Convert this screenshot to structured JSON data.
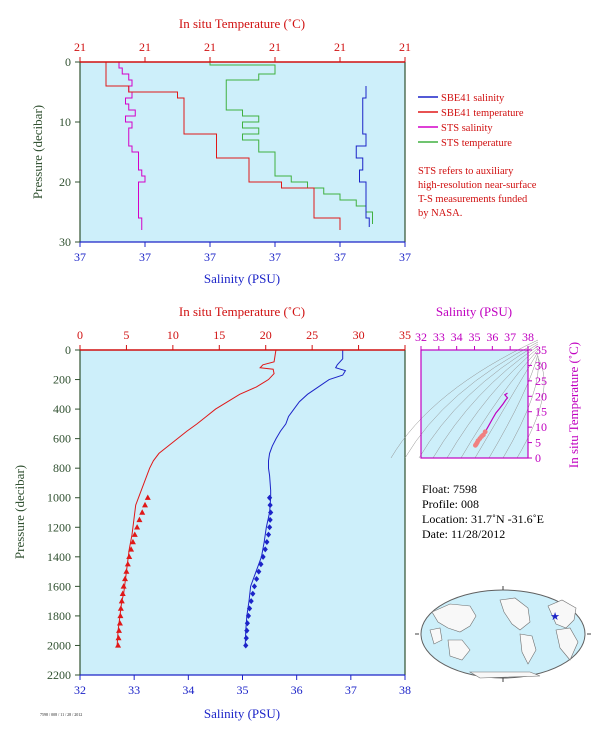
{
  "colors": {
    "plot_bg": "#cdeffa",
    "salinity": "#1c24c8",
    "temperature": "#e01818",
    "sts_salinity": "#d400c8",
    "sts_temperature": "#40b040",
    "axis_left": "#305030",
    "axis_blue": "#1c24c8",
    "axis_red": "#d01010",
    "axis_magenta": "#c000c0"
  },
  "chart_data": [
    {
      "id": "near_surface",
      "type": "line",
      "title": "In situ Temperature (˚C)",
      "top_axis_label": "In situ Temperature (˚C)",
      "top_ticks": [
        "21",
        "21",
        "21",
        "21",
        "21",
        "21"
      ],
      "bottom_axis_label": "Salinity (PSU)",
      "bottom_ticks": [
        "37",
        "37",
        "37",
        "37",
        "37",
        "37"
      ],
      "ylabel": "Pressure (decibar)",
      "yticks": [
        "0",
        "10",
        "20",
        "30"
      ],
      "ylim": [
        0,
        30
      ],
      "x_norm_range": [
        0,
        1
      ],
      "legend": {
        "placement": "right",
        "entries": [
          "SBE41 salinity",
          "SBE41 temperature",
          "STS salinity",
          "STS temperature"
        ]
      },
      "note": [
        "STS refers to auxiliary",
        "high-resolution near-surface",
        "T-S measurements funded",
        "by NASA."
      ],
      "series": [
        {
          "name": "STS salinity",
          "p": [
            0,
            1,
            2,
            3,
            4,
            5,
            6,
            7,
            8,
            9,
            10,
            11,
            12,
            13,
            14,
            15,
            16,
            17,
            18,
            19,
            20,
            21,
            22,
            23,
            24,
            25,
            26,
            27,
            28
          ],
          "x": [
            0.1,
            0.12,
            0.13,
            0.15,
            0.16,
            0.15,
            0.16,
            0.14,
            0.15,
            0.17,
            0.14,
            0.16,
            0.15,
            0.15,
            0.15,
            0.16,
            0.18,
            0.18,
            0.18,
            0.19,
            0.2,
            0.18,
            0.18,
            0.18,
            0.18,
            0.18,
            0.18,
            0.19,
            0.19
          ]
        },
        {
          "name": "STS temperature",
          "p": [
            0,
            0.5,
            1,
            2,
            3,
            3,
            4,
            5,
            6,
            7,
            8,
            9,
            10,
            11,
            12,
            13,
            14,
            15,
            16,
            17,
            18,
            19,
            20,
            21,
            22,
            23,
            24,
            25,
            26,
            27
          ],
          "x": [
            0.05,
            0.4,
            0.6,
            0.6,
            0.55,
            0.45,
            0.45,
            0.45,
            0.45,
            0.45,
            0.45,
            0.5,
            0.55,
            0.5,
            0.55,
            0.5,
            0.55,
            0.55,
            0.6,
            0.6,
            0.6,
            0.6,
            0.65,
            0.7,
            0.75,
            0.8,
            0.85,
            0.88,
            0.9,
            0.9
          ]
        },
        {
          "name": "SBE41 temperature",
          "p": [
            0,
            4,
            5,
            6,
            8,
            10,
            12,
            14,
            16,
            18,
            20,
            21,
            22,
            24,
            26,
            27,
            28
          ],
          "x": [
            0.08,
            0.08,
            0.15,
            0.3,
            0.32,
            0.32,
            0.32,
            0.42,
            0.42,
            0.52,
            0.52,
            0.62,
            0.72,
            0.72,
            0.72,
            0.8,
            0.8
          ]
        },
        {
          "name": "SBE41 salinity",
          "p": [
            4,
            6,
            8,
            10,
            12,
            14,
            16,
            18,
            20,
            22,
            24,
            26,
            27.5
          ],
          "x": [
            0.88,
            0.88,
            0.87,
            0.87,
            0.87,
            0.88,
            0.85,
            0.87,
            0.86,
            0.88,
            0.88,
            0.88,
            0.89
          ]
        }
      ]
    },
    {
      "id": "full_profile",
      "type": "line",
      "top_axis_label": "In situ Temperature (˚C)",
      "top_ticks": [
        0,
        5,
        10,
        15,
        20,
        25,
        30,
        35
      ],
      "xlim_temperature": [
        0,
        35
      ],
      "bottom_axis_label": "Salinity (PSU)",
      "bottom_ticks": [
        32,
        33,
        34,
        35,
        36,
        37,
        38
      ],
      "xlim_salinity": [
        32,
        38
      ],
      "ylabel": "Pressure (decibar)",
      "yticks": [
        0,
        200,
        400,
        600,
        800,
        1000,
        1200,
        1400,
        1600,
        1800,
        2000,
        2200
      ],
      "ylim": [
        0,
        2200
      ],
      "series": [
        {
          "name": "temperature",
          "x": [
            21.1,
            21.0,
            20.9,
            19.7,
            19.4,
            20.8,
            20.9,
            20.3,
            19.0,
            17.2,
            15.9,
            14.6,
            13.6,
            12.6,
            11.5,
            10.5,
            9.5,
            8.5,
            7.9,
            7.5,
            7.2,
            6.9,
            6.6,
            6.3,
            6.0,
            5.8,
            5.6,
            5.3,
            5.1,
            4.9,
            4.7,
            4.5,
            4.4,
            4.3,
            4.2,
            4.1,
            4.0
          ],
          "y": [
            0,
            40,
            80,
            100,
            120,
            130,
            160,
            200,
            250,
            300,
            350,
            400,
            450,
            500,
            550,
            600,
            650,
            700,
            750,
            800,
            850,
            900,
            950,
            1000,
            1050,
            1150,
            1250,
            1350,
            1450,
            1550,
            1650,
            1700,
            1750,
            1800,
            1850,
            1900,
            2000
          ]
        },
        {
          "name": "salinity",
          "x": [
            36.85,
            36.85,
            36.75,
            36.72,
            36.9,
            36.85,
            36.6,
            36.4,
            36.2,
            36.05,
            35.95,
            35.85,
            35.8,
            35.7,
            35.62,
            35.55,
            35.5,
            35.48,
            35.48,
            35.5,
            35.52,
            35.52,
            35.5,
            35.47,
            35.44,
            35.4,
            35.35,
            35.3,
            35.25,
            35.2,
            35.15,
            35.12,
            35.1,
            35.08,
            35.07,
            35.06,
            35.05
          ],
          "y": [
            0,
            60,
            100,
            120,
            140,
            170,
            200,
            250,
            300,
            350,
            400,
            450,
            500,
            550,
            600,
            650,
            700,
            750,
            800,
            850,
            950,
            1000,
            1100,
            1150,
            1200,
            1300,
            1400,
            1450,
            1500,
            1550,
            1600,
            1700,
            1750,
            1800,
            1850,
            1900,
            2000
          ]
        }
      ],
      "temperature_markers": {
        "y": [
          1000,
          1050,
          1100,
          1150,
          1200,
          1250,
          1300,
          1350,
          1400,
          1450,
          1500,
          1550,
          1600,
          1650,
          1700,
          1750,
          1800,
          1850,
          1900,
          1950,
          2000
        ],
        "x": [
          7.3,
          7.0,
          6.7,
          6.4,
          6.15,
          5.9,
          5.7,
          5.5,
          5.3,
          5.15,
          5.0,
          4.85,
          4.7,
          4.6,
          4.5,
          4.4,
          4.35,
          4.3,
          4.2,
          4.15,
          4.1
        ]
      },
      "salinity_markers": {
        "y": [
          1000,
          1050,
          1100,
          1150,
          1200,
          1250,
          1300,
          1350,
          1400,
          1450,
          1500,
          1550,
          1600,
          1650,
          1700,
          1750,
          1800,
          1850,
          1900,
          1950,
          2000
        ],
        "x": [
          35.5,
          35.51,
          35.52,
          35.51,
          35.5,
          35.48,
          35.45,
          35.42,
          35.38,
          35.34,
          35.3,
          35.26,
          35.22,
          35.19,
          35.16,
          35.13,
          35.11,
          35.09,
          35.08,
          35.07,
          35.06
        ]
      }
    },
    {
      "id": "ts_diagram",
      "type": "scatter",
      "top_axis_label": "Salinity (PSU)",
      "top_ticks": [
        32,
        33,
        34,
        35,
        36,
        37,
        38
      ],
      "xlim": [
        32,
        38
      ],
      "right_axis_label": "In situ Temperature (˚C)",
      "right_ticks": [
        0,
        5,
        10,
        15,
        20,
        25,
        30,
        35
      ],
      "ylim": [
        0,
        35
      ],
      "points": {
        "s": [
          35.05,
          35.1,
          35.15,
          35.2,
          35.3,
          35.4,
          35.5,
          35.6,
          35.8,
          36.0,
          36.2,
          36.4,
          36.6,
          36.75,
          36.85,
          36.7,
          36.85
        ],
        "t": [
          4.1,
          4.5,
          5.0,
          5.6,
          6.3,
          7.0,
          7.5,
          8.5,
          10.5,
          12.6,
          14.6,
          16.0,
          17.5,
          18.8,
          19.5,
          20.5,
          21.0
        ]
      }
    }
  ],
  "float_info": {
    "float_label": "Float:",
    "float_value": "7598",
    "profile_label": "Profile:",
    "profile_value": "008",
    "location_label": "Location:",
    "location_value": "31.7˚N  -31.6˚E",
    "date_label": "Date:",
    "date_value": "11/28/2012"
  },
  "map": {
    "marker_icon": "star-icon"
  },
  "footer_code": "7598 / 008 / 11 / 28 / 2012"
}
